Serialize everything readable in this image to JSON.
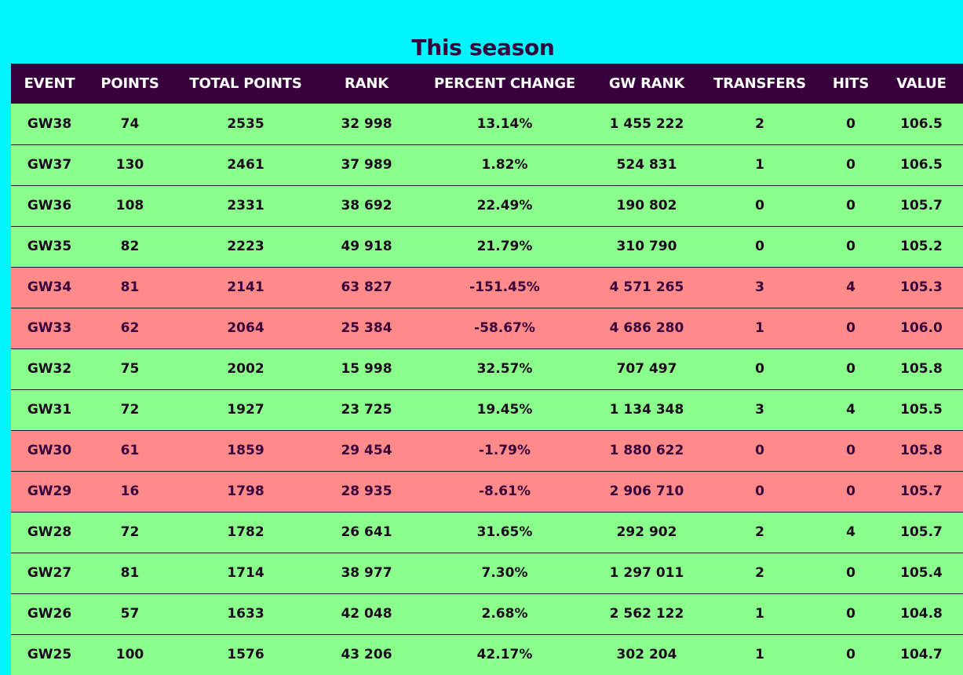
{
  "page": {
    "title": "This season"
  },
  "table": {
    "headers": [
      "EVENT",
      "POINTS",
      "TOTAL POINTS",
      "RANK",
      "PERCENT CHANGE",
      "GW RANK",
      "TRANSFERS",
      "HITS",
      "VALUE"
    ],
    "rows": [
      {
        "status": "up",
        "cells": [
          "GW38",
          "74",
          "2535",
          "32 998",
          "13.14%",
          "1 455 222",
          "2",
          "0",
          "106.5"
        ]
      },
      {
        "status": "up",
        "cells": [
          "GW37",
          "130",
          "2461",
          "37 989",
          "1.82%",
          "524 831",
          "1",
          "0",
          "106.5"
        ]
      },
      {
        "status": "up",
        "cells": [
          "GW36",
          "108",
          "2331",
          "38 692",
          "22.49%",
          "190 802",
          "0",
          "0",
          "105.7"
        ]
      },
      {
        "status": "up",
        "cells": [
          "GW35",
          "82",
          "2223",
          "49 918",
          "21.79%",
          "310 790",
          "0",
          "0",
          "105.2"
        ]
      },
      {
        "status": "down",
        "cells": [
          "GW34",
          "81",
          "2141",
          "63 827",
          "-151.45%",
          "4 571 265",
          "3",
          "4",
          "105.3"
        ]
      },
      {
        "status": "down",
        "cells": [
          "GW33",
          "62",
          "2064",
          "25 384",
          "-58.67%",
          "4 686 280",
          "1",
          "0",
          "106.0"
        ]
      },
      {
        "status": "up",
        "cells": [
          "GW32",
          "75",
          "2002",
          "15 998",
          "32.57%",
          "707 497",
          "0",
          "0",
          "105.8"
        ]
      },
      {
        "status": "up",
        "cells": [
          "GW31",
          "72",
          "1927",
          "23 725",
          "19.45%",
          "1 134 348",
          "3",
          "4",
          "105.5"
        ]
      },
      {
        "status": "down",
        "cells": [
          "GW30",
          "61",
          "1859",
          "29 454",
          "-1.79%",
          "1 880 622",
          "0",
          "0",
          "105.8"
        ]
      },
      {
        "status": "down",
        "cells": [
          "GW29",
          "16",
          "1798",
          "28 935",
          "-8.61%",
          "2 906 710",
          "0",
          "0",
          "105.7"
        ]
      },
      {
        "status": "up",
        "cells": [
          "GW28",
          "72",
          "1782",
          "26 641",
          "31.65%",
          "292 902",
          "2",
          "4",
          "105.7"
        ]
      },
      {
        "status": "up",
        "cells": [
          "GW27",
          "81",
          "1714",
          "38 977",
          "7.30%",
          "1 297 011",
          "2",
          "0",
          "105.4"
        ]
      },
      {
        "status": "up",
        "cells": [
          "GW26",
          "57",
          "1633",
          "42 048",
          "2.68%",
          "2 562 122",
          "1",
          "0",
          "104.8"
        ]
      },
      {
        "status": "up",
        "cells": [
          "GW25",
          "100",
          "1576",
          "43 206",
          "42.17%",
          "302 204",
          "1",
          "0",
          "104.7"
        ]
      }
    ]
  },
  "colors": {
    "background": "#00f5ff",
    "header": "#37003c",
    "row_up": "#8bff8b",
    "row_down": "#ff8a8a"
  }
}
